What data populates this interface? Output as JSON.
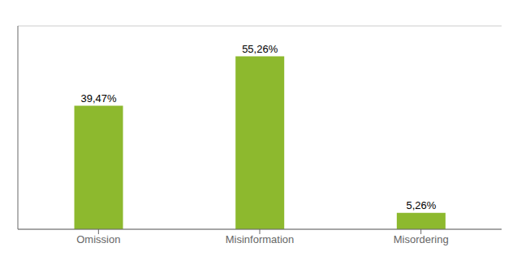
{
  "chart_data": {
    "type": "bar",
    "categories": [
      "Omission",
      "Misinformation",
      "Misordering"
    ],
    "values": [
      39.47,
      55.26,
      5.26
    ],
    "value_labels": [
      "39,47%",
      "55,26%",
      "5,26%"
    ],
    "data_labels": true,
    "color": "#8DB92E",
    "ylim": [
      0,
      65
    ],
    "yticks": [
      0,
      10,
      20,
      30,
      40,
      50,
      60
    ],
    "grid": true,
    "tick_labels": "x"
  }
}
